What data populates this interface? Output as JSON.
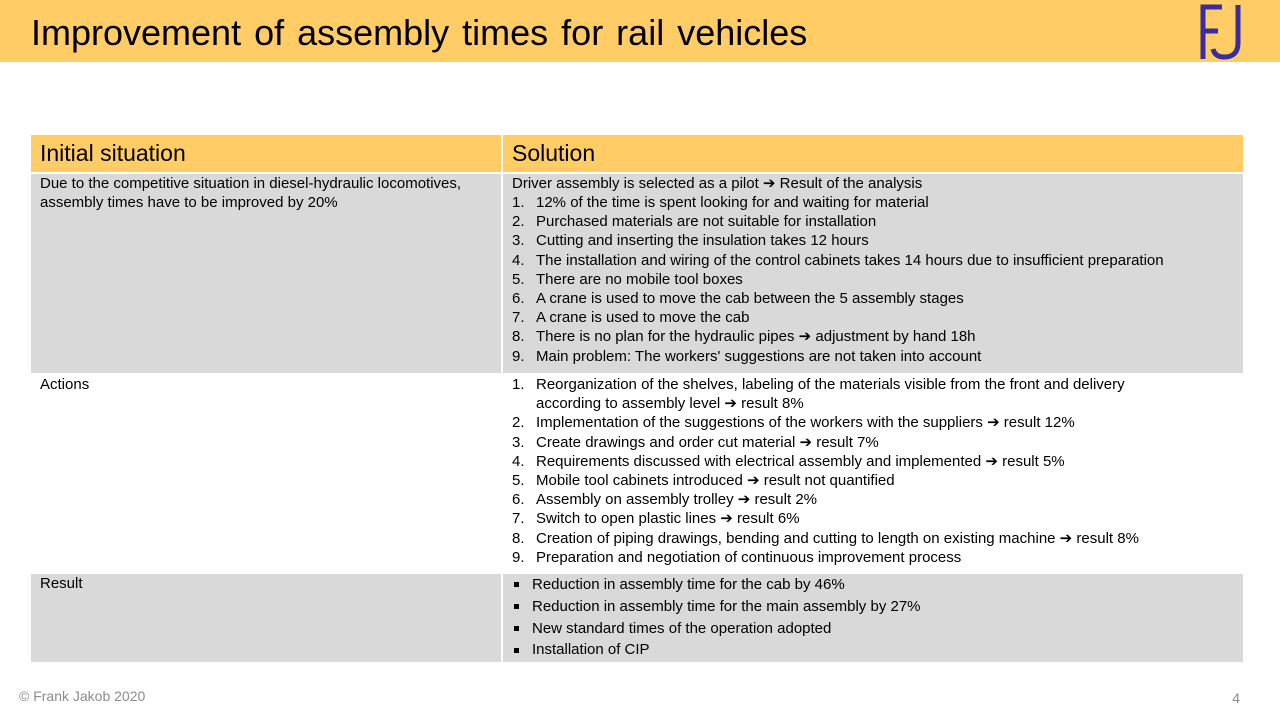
{
  "title": "Improvement of assembly times for rail vehicles",
  "logo": {
    "text": "FJ",
    "color": "#3b2d9c"
  },
  "colors": {
    "header": "#ffcc66",
    "row_grey": "#d9d9d9"
  },
  "table": {
    "headers": [
      "Initial situation",
      "Solution"
    ],
    "initial": {
      "text": "Due to the competitive situation in diesel-hydraulic locomotives, assembly times have to be improved by 20%",
      "intro": "Driver assembly is selected as a pilot ➔ Result of the analysis",
      "items": [
        {
          "num": "1.",
          "text": "12% of the time is spent looking for and waiting for material"
        },
        {
          "num": "2.",
          "text": "Purchased materials are not suitable for installation"
        },
        {
          "num": "3.",
          "text": "Cutting and inserting the insulation takes 12 hours"
        },
        {
          "num": "4.",
          "text": "The installation and wiring of the control cabinets takes 14 hours due to insufficient preparation"
        },
        {
          "num": "5.",
          "text": "There are no mobile tool boxes"
        },
        {
          "num": "6.",
          "text": "A crane is used to move the cab between the 5 assembly stages"
        },
        {
          "num": "7.",
          "text": "A crane is used to move the cab"
        },
        {
          "num": "8.",
          "text": "There is no plan for the hydraulic pipes ➔ adjustment by hand 18h"
        },
        {
          "num": "9.",
          "text": "Main problem: The workers' suggestions are not taken into account"
        }
      ]
    },
    "actions": {
      "label": "Actions",
      "items": [
        {
          "num": "1.",
          "text": "Reorganization of the shelves, labeling of the materials visible from the front and delivery according to assembly level ➔ result 8%"
        },
        {
          "num": "2.",
          "text": "Implementation of the suggestions of the workers with the suppliers ➔ result 12%"
        },
        {
          "num": "3.",
          "text": "Create drawings and order cut material ➔ result 7%"
        },
        {
          "num": "4.",
          "text": "Requirements discussed with electrical assembly and implemented ➔ result 5%"
        },
        {
          "num": "5.",
          "text": "Mobile tool cabinets introduced ➔ result not quantified"
        },
        {
          "num": "6.",
          "text": "Assembly on assembly trolley ➔ result 2%"
        },
        {
          "num": "7.",
          "text": "Switch to open plastic lines ➔ result 6%"
        },
        {
          "num": "8.",
          "text": "Creation of piping drawings, bending and cutting to length on existing machine ➔ result 8%"
        },
        {
          "num": "9.",
          "text": "Preparation and negotiation of continuous improvement process"
        }
      ]
    },
    "result": {
      "label": "Result",
      "items": [
        "Reduction in assembly time for the cab by 46%",
        "Reduction in assembly time for the main assembly by 27%",
        "New standard times of the operation adopted",
        "Installation of CIP"
      ]
    }
  },
  "footer": {
    "copyright": "© Frank Jakob 2020",
    "page": "4"
  }
}
